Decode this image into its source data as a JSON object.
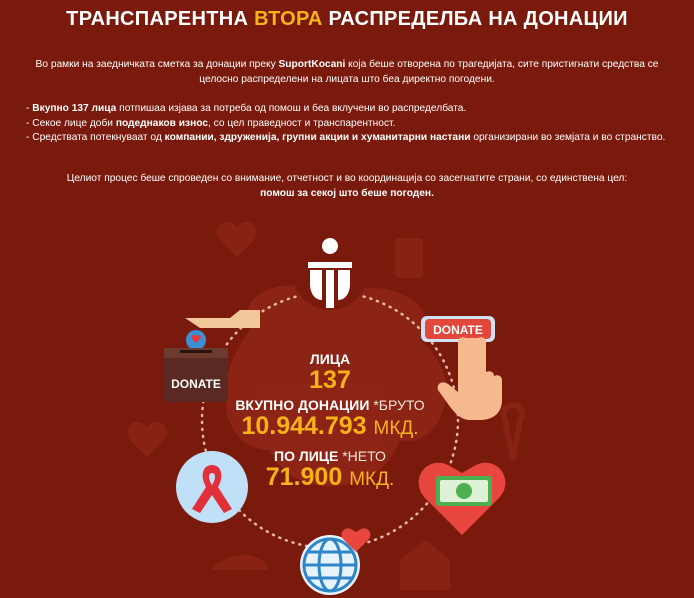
{
  "title": {
    "part1": "ТРАНСПАРЕНТНА",
    "highlight": "ВТОРА",
    "part2": "РАСПРЕДЕЛБА НА ДОНАЦИИ"
  },
  "intro": {
    "a": "Во рамки на заедничката сметка за донации преку ",
    "brand": "SuportKocani",
    "b": " која беше отворена по трагедијата, сите пристигнати средства се целосно распределени на лицата што беа директно погодени."
  },
  "bullets": [
    {
      "pre": "- ",
      "bold": "Вкупно 137 лица",
      "post": " потпишаа изјава за потреба од помош и беа вклучени во распределбата."
    },
    {
      "pre": "- Секое лице доби ",
      "bold": "подеднаков износ",
      "post": ", со цел праведност и транспарентност."
    },
    {
      "pre": "- Средствата потекнуваат од ",
      "bold": "компании, здруженија, групни акции и хуманитарни настани",
      "post": " организирани во земјата и во странство."
    }
  ],
  "closing": {
    "text": "Целиот процес беше спроведен со внимание, отчетност и во координација со засегнатите страни, со единствена цел:",
    "bold": "помош за секој што беше погоден."
  },
  "stats": {
    "persons_label": "ЛИЦА",
    "persons_value": "137",
    "total_label": "ВКУПНО ДОНАЦИИ",
    "total_note": "*БРУТО",
    "total_value": "10.944.793",
    "total_unit": "МКД.",
    "per_label": "ПО ЛИЦЕ",
    "per_note": "*НЕТО",
    "per_value": "71.900",
    "per_unit": "МКД."
  },
  "icons": {
    "donate_box_label": "DONATE",
    "donate_button_label": "DONATE"
  },
  "colors": {
    "background": "#7a1a0c",
    "accent": "#f7b21a"
  }
}
